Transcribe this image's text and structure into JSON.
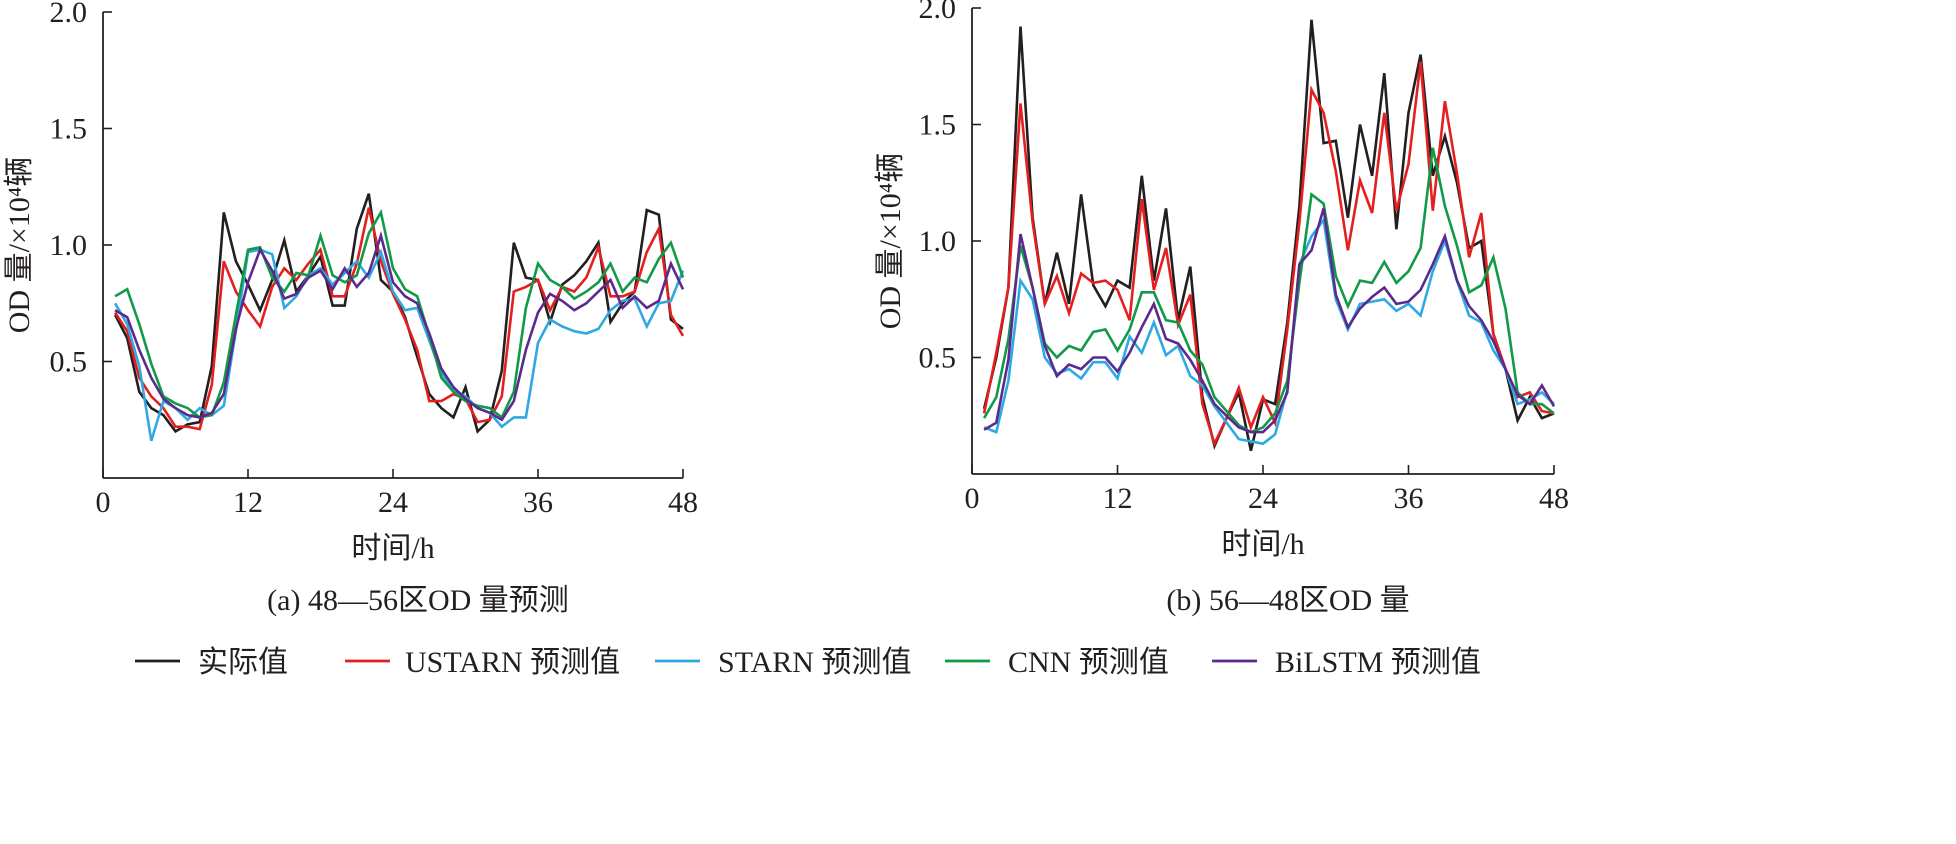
{
  "chart_data": [
    {
      "type": "line",
      "caption": "(a) 48—56区OD 量预测",
      "xlabel": "时间/h",
      "ylabel": "OD 量/×10⁴辆",
      "xlim": [
        0,
        48
      ],
      "ylim": [
        0,
        2.0
      ],
      "xticks": [
        "0",
        "12",
        "24",
        "36",
        "48"
      ],
      "yticks": [
        "0.5",
        "1.0",
        "1.5",
        "2.0"
      ],
      "grid": false,
      "x": [
        1,
        2,
        3,
        4,
        5,
        6,
        7,
        8,
        9,
        10,
        11,
        12,
        13,
        14,
        15,
        16,
        17,
        18,
        19,
        20,
        21,
        22,
        23,
        24,
        25,
        26,
        27,
        28,
        29,
        30,
        31,
        32,
        33,
        34,
        35,
        36,
        37,
        38,
        39,
        40,
        41,
        42,
        43,
        44,
        45,
        46,
        47,
        48
      ],
      "series": [
        {
          "name": "实际值",
          "values": [
            0.7,
            0.6,
            0.37,
            0.3,
            0.27,
            0.2,
            0.23,
            0.24,
            0.48,
            1.14,
            0.93,
            0.83,
            0.72,
            0.85,
            1.02,
            0.8,
            0.87,
            0.95,
            0.74,
            0.74,
            1.07,
            1.22,
            0.85,
            0.8,
            0.69,
            0.52,
            0.36,
            0.3,
            0.26,
            0.39,
            0.2,
            0.25,
            0.46,
            1.01,
            0.86,
            0.85,
            0.67,
            0.83,
            0.87,
            0.93,
            1.01,
            0.67,
            0.75,
            0.8,
            1.15,
            1.13,
            0.68,
            0.64
          ]
        },
        {
          "name": "USTARN 预测值",
          "values": [
            0.71,
            0.63,
            0.43,
            0.35,
            0.3,
            0.22,
            0.22,
            0.21,
            0.4,
            0.93,
            0.8,
            0.72,
            0.65,
            0.82,
            0.9,
            0.85,
            0.92,
            0.98,
            0.78,
            0.78,
            0.92,
            1.16,
            0.93,
            0.79,
            0.68,
            0.55,
            0.33,
            0.33,
            0.36,
            0.34,
            0.24,
            0.25,
            0.35,
            0.8,
            0.82,
            0.85,
            0.72,
            0.82,
            0.8,
            0.86,
            0.99,
            0.78,
            0.78,
            0.8,
            0.97,
            1.07,
            0.7,
            0.61
          ]
        },
        {
          "name": "STARN 预测值",
          "values": [
            0.75,
            0.66,
            0.48,
            0.16,
            0.33,
            0.3,
            0.25,
            0.3,
            0.27,
            0.31,
            0.63,
            0.97,
            0.98,
            0.96,
            0.73,
            0.78,
            0.87,
            0.9,
            0.83,
            0.88,
            0.93,
            0.86,
            0.97,
            0.8,
            0.72,
            0.73,
            0.59,
            0.45,
            0.38,
            0.35,
            0.3,
            0.28,
            0.22,
            0.26,
            0.26,
            0.58,
            0.68,
            0.65,
            0.63,
            0.62,
            0.64,
            0.72,
            0.76,
            0.77,
            0.65,
            0.75,
            0.76,
            0.89
          ]
        },
        {
          "name": "CNN 预测值",
          "values": [
            0.78,
            0.81,
            0.66,
            0.49,
            0.35,
            0.32,
            0.3,
            0.26,
            0.27,
            0.41,
            0.7,
            0.98,
            0.99,
            0.86,
            0.8,
            0.88,
            0.87,
            1.04,
            0.87,
            0.84,
            0.87,
            1.05,
            1.14,
            0.9,
            0.81,
            0.78,
            0.61,
            0.43,
            0.37,
            0.33,
            0.31,
            0.3,
            0.26,
            0.37,
            0.73,
            0.92,
            0.85,
            0.82,
            0.77,
            0.8,
            0.84,
            0.92,
            0.8,
            0.86,
            0.84,
            0.94,
            1.01,
            0.86
          ]
        },
        {
          "name": "BiLSTM 预测值",
          "values": [
            0.72,
            0.69,
            0.55,
            0.43,
            0.34,
            0.3,
            0.27,
            0.26,
            0.28,
            0.36,
            0.64,
            0.84,
            0.98,
            0.89,
            0.77,
            0.79,
            0.86,
            0.89,
            0.81,
            0.9,
            0.82,
            0.88,
            1.04,
            0.84,
            0.78,
            0.75,
            0.62,
            0.47,
            0.39,
            0.34,
            0.3,
            0.28,
            0.25,
            0.33,
            0.55,
            0.71,
            0.79,
            0.76,
            0.72,
            0.75,
            0.8,
            0.85,
            0.73,
            0.78,
            0.73,
            0.76,
            0.92,
            0.81
          ]
        }
      ]
    },
    {
      "type": "line",
      "caption": "(b) 56—48区OD 量",
      "xlabel": "时间/h",
      "ylabel": "OD 量/×10⁴辆",
      "xlim": [
        0,
        48
      ],
      "ylim": [
        0,
        2.0
      ],
      "xticks": [
        "0",
        "12",
        "24",
        "36",
        "48"
      ],
      "yticks": [
        "0.5",
        "1.0",
        "1.5",
        "2.0"
      ],
      "grid": false,
      "x": [
        1,
        2,
        3,
        4,
        5,
        6,
        7,
        8,
        9,
        10,
        11,
        12,
        13,
        14,
        15,
        16,
        17,
        18,
        19,
        20,
        21,
        22,
        23,
        24,
        25,
        26,
        27,
        28,
        29,
        30,
        31,
        32,
        33,
        34,
        35,
        36,
        37,
        38,
        39,
        40,
        41,
        42,
        43,
        44,
        45,
        46,
        47,
        48
      ],
      "series": [
        {
          "name": "实际值",
          "values": [
            0.28,
            0.5,
            0.8,
            1.92,
            1.1,
            0.73,
            0.95,
            0.73,
            1.2,
            0.81,
            0.72,
            0.83,
            0.8,
            1.28,
            0.83,
            1.14,
            0.66,
            0.89,
            0.33,
            0.12,
            0.24,
            0.35,
            0.1,
            0.32,
            0.3,
            0.65,
            1.15,
            1.95,
            1.42,
            1.43,
            1.1,
            1.5,
            1.28,
            1.72,
            1.05,
            1.55,
            1.8,
            1.28,
            1.45,
            1.25,
            0.97,
            1.0,
            0.6,
            0.45,
            0.23,
            0.33,
            0.24,
            0.26
          ]
        },
        {
          "name": "USTARN 预测值",
          "values": [
            0.26,
            0.52,
            0.8,
            1.59,
            1.08,
            0.73,
            0.85,
            0.69,
            0.86,
            0.82,
            0.83,
            0.79,
            0.66,
            1.18,
            0.79,
            0.97,
            0.64,
            0.77,
            0.3,
            0.13,
            0.24,
            0.37,
            0.2,
            0.33,
            0.22,
            0.62,
            1.08,
            1.65,
            1.55,
            1.3,
            0.96,
            1.26,
            1.12,
            1.55,
            1.13,
            1.33,
            1.77,
            1.13,
            1.6,
            1.29,
            0.93,
            1.12,
            0.6,
            0.45,
            0.33,
            0.35,
            0.27,
            0.26
          ]
        },
        {
          "name": "STARN 预测值",
          "values": [
            0.2,
            0.18,
            0.4,
            0.83,
            0.75,
            0.5,
            0.43,
            0.45,
            0.41,
            0.48,
            0.48,
            0.41,
            0.59,
            0.52,
            0.65,
            0.51,
            0.55,
            0.42,
            0.38,
            0.29,
            0.22,
            0.15,
            0.14,
            0.13,
            0.17,
            0.36,
            0.9,
            1.02,
            1.09,
            0.75,
            0.62,
            0.73,
            0.74,
            0.75,
            0.7,
            0.73,
            0.68,
            0.87,
            1.0,
            0.83,
            0.68,
            0.65,
            0.53,
            0.45,
            0.3,
            0.32,
            0.35,
            0.3
          ]
        },
        {
          "name": "CNN 预测值",
          "values": [
            0.24,
            0.33,
            0.58,
            0.98,
            0.8,
            0.56,
            0.5,
            0.55,
            0.53,
            0.61,
            0.62,
            0.53,
            0.62,
            0.78,
            0.78,
            0.66,
            0.65,
            0.53,
            0.47,
            0.33,
            0.27,
            0.21,
            0.18,
            0.2,
            0.26,
            0.4,
            0.82,
            1.2,
            1.16,
            0.85,
            0.72,
            0.83,
            0.82,
            0.91,
            0.82,
            0.87,
            0.97,
            1.4,
            1.15,
            0.98,
            0.78,
            0.81,
            0.93,
            0.71,
            0.35,
            0.3,
            0.3,
            0.26
          ]
        },
        {
          "name": "BiLSTM 预测值",
          "values": [
            0.19,
            0.22,
            0.49,
            1.03,
            0.8,
            0.55,
            0.42,
            0.47,
            0.45,
            0.5,
            0.5,
            0.44,
            0.52,
            0.63,
            0.73,
            0.58,
            0.56,
            0.49,
            0.4,
            0.3,
            0.25,
            0.2,
            0.18,
            0.18,
            0.23,
            0.35,
            0.9,
            0.96,
            1.14,
            0.77,
            0.63,
            0.71,
            0.76,
            0.8,
            0.73,
            0.74,
            0.79,
            0.9,
            1.02,
            0.83,
            0.72,
            0.66,
            0.57,
            0.45,
            0.34,
            0.3,
            0.38,
            0.29
          ]
        }
      ]
    }
  ],
  "legend": {
    "placement": "bottom",
    "items": [
      {
        "label": "实际值",
        "color": "#231f20"
      },
      {
        "label": "USTARN 预测值",
        "color": "#e41f1f"
      },
      {
        "label": "STARN 预测值",
        "color": "#2fa9e3"
      },
      {
        "label": "CNN 预测值",
        "color": "#119a48"
      },
      {
        "label": "BiLSTM 预测值",
        "color": "#5b2a8c"
      }
    ]
  }
}
